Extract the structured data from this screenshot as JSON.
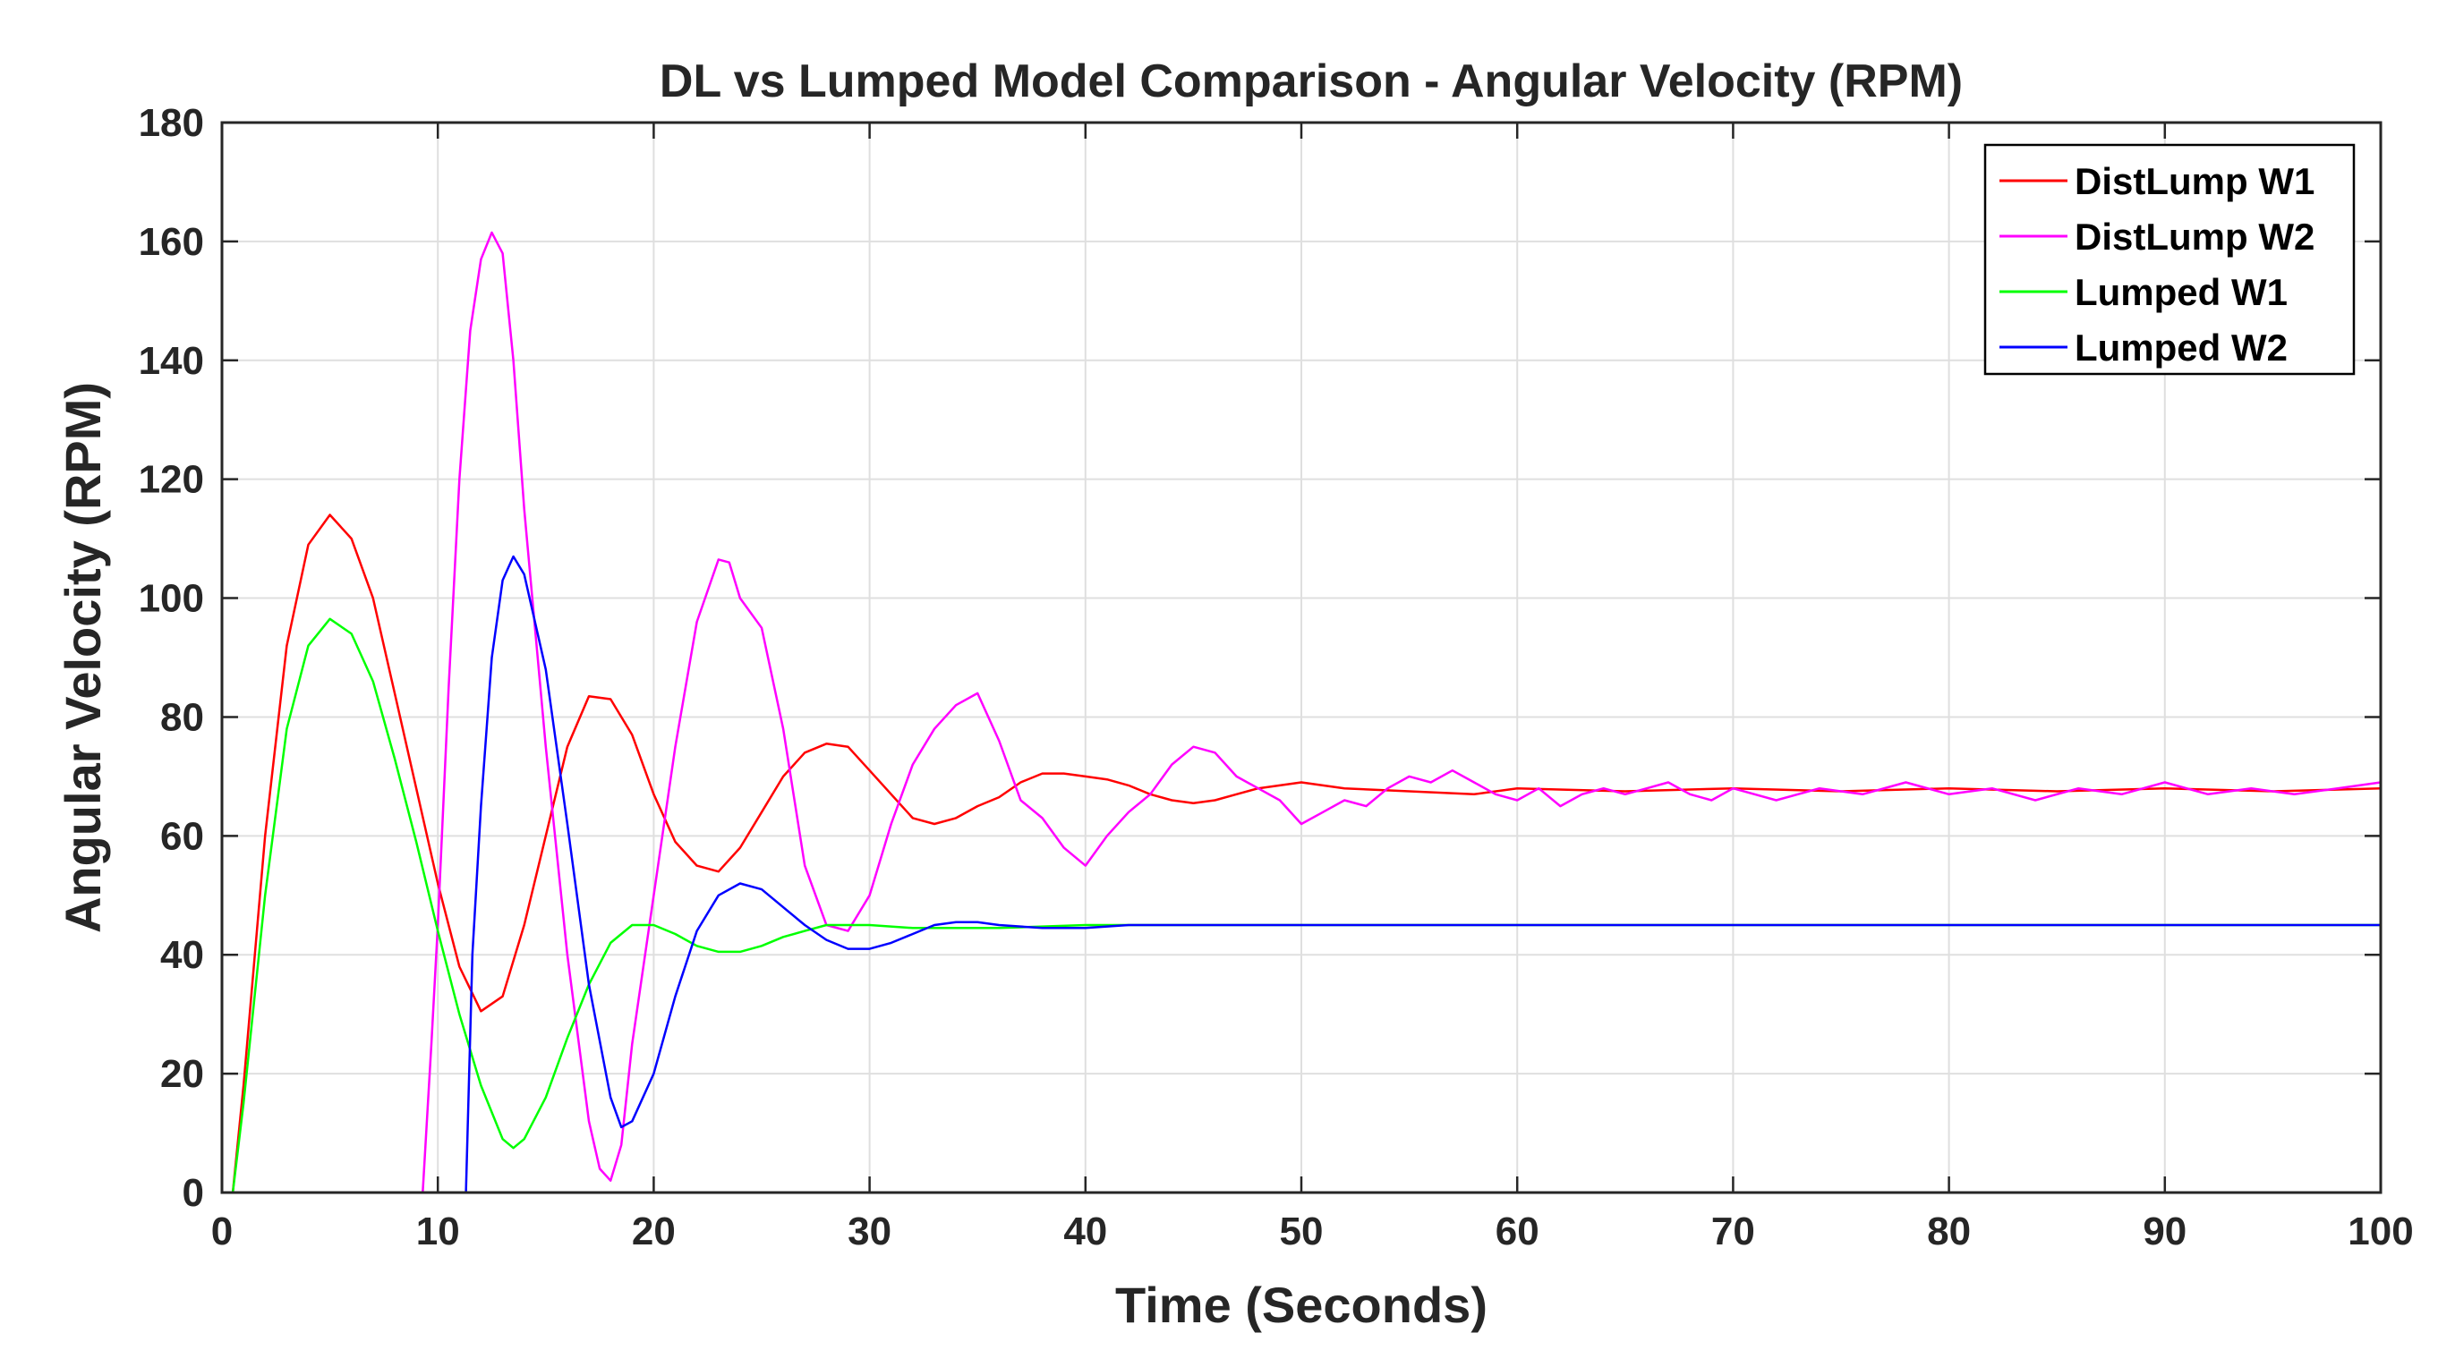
{
  "chart_data": {
    "type": "line",
    "title": "DL vs Lumped Model Comparison - Angular Velocity (RPM)",
    "xlabel": "Time (Seconds)",
    "ylabel": "Angular Velocity (RPM)",
    "xlim": [
      0,
      100
    ],
    "ylim": [
      0,
      180
    ],
    "xticks": [
      0,
      10,
      20,
      30,
      40,
      50,
      60,
      70,
      80,
      90,
      100
    ],
    "yticks": [
      0,
      20,
      40,
      60,
      80,
      100,
      120,
      140,
      160,
      180
    ],
    "grid": true,
    "legend_position": "top-right",
    "series": [
      {
        "name": "DistLump W1",
        "color": "#ff0000",
        "points": [
          [
            0.5,
            0
          ],
          [
            1,
            18
          ],
          [
            2,
            60
          ],
          [
            3,
            92
          ],
          [
            4,
            109
          ],
          [
            5,
            114
          ],
          [
            6,
            110
          ],
          [
            7,
            100
          ],
          [
            8,
            84
          ],
          [
            9,
            68
          ],
          [
            10,
            52
          ],
          [
            11,
            38
          ],
          [
            12,
            30.5
          ],
          [
            13,
            33
          ],
          [
            14,
            45
          ],
          [
            15,
            60
          ],
          [
            16,
            75
          ],
          [
            17,
            83.5
          ],
          [
            18,
            83
          ],
          [
            19,
            77
          ],
          [
            20,
            67
          ],
          [
            21,
            59
          ],
          [
            22,
            55
          ],
          [
            23,
            54
          ],
          [
            24,
            58
          ],
          [
            25,
            64
          ],
          [
            26,
            70
          ],
          [
            27,
            74
          ],
          [
            28,
            75.5
          ],
          [
            29,
            75
          ],
          [
            30,
            71
          ],
          [
            31,
            67
          ],
          [
            32,
            63
          ],
          [
            33,
            62
          ],
          [
            34,
            63
          ],
          [
            35,
            65
          ],
          [
            36,
            66.5
          ],
          [
            37,
            69
          ],
          [
            38,
            70.5
          ],
          [
            39,
            70.5
          ],
          [
            40,
            70
          ],
          [
            41,
            69.5
          ],
          [
            42,
            68.5
          ],
          [
            43,
            67
          ],
          [
            44,
            66
          ],
          [
            45,
            65.5
          ],
          [
            46,
            66
          ],
          [
            47,
            67
          ],
          [
            48,
            68
          ],
          [
            49,
            68.5
          ],
          [
            50,
            69
          ],
          [
            52,
            68
          ],
          [
            55,
            67.5
          ],
          [
            58,
            67
          ],
          [
            60,
            68
          ],
          [
            65,
            67.5
          ],
          [
            70,
            68
          ],
          [
            75,
            67.5
          ],
          [
            80,
            68
          ],
          [
            85,
            67.5
          ],
          [
            90,
            68
          ],
          [
            95,
            67.5
          ],
          [
            100,
            68
          ]
        ]
      },
      {
        "name": "DistLump W2",
        "color": "#ff00ff",
        "points": [
          [
            0,
            0
          ],
          [
            9,
            0
          ],
          [
            9.3,
            0
          ],
          [
            9.7,
            25
          ],
          [
            10,
            45
          ],
          [
            10.5,
            85
          ],
          [
            11,
            120
          ],
          [
            11.5,
            145
          ],
          [
            12,
            157
          ],
          [
            12.5,
            161.5
          ],
          [
            13,
            158
          ],
          [
            13.5,
            140
          ],
          [
            14,
            115
          ],
          [
            15,
            75
          ],
          [
            16,
            40
          ],
          [
            17,
            12
          ],
          [
            17.5,
            4
          ],
          [
            18,
            2
          ],
          [
            18.5,
            8
          ],
          [
            19,
            25
          ],
          [
            20,
            50
          ],
          [
            21,
            75
          ],
          [
            22,
            96
          ],
          [
            23,
            106.5
          ],
          [
            23.5,
            106
          ],
          [
            24,
            100
          ],
          [
            25,
            95
          ],
          [
            26,
            78
          ],
          [
            27,
            55
          ],
          [
            28,
            45
          ],
          [
            29,
            44
          ],
          [
            30,
            50
          ],
          [
            31,
            62
          ],
          [
            32,
            72
          ],
          [
            33,
            78
          ],
          [
            34,
            82
          ],
          [
            35,
            84
          ],
          [
            36,
            76
          ],
          [
            37,
            66
          ],
          [
            38,
            63
          ],
          [
            39,
            58
          ],
          [
            40,
            55
          ],
          [
            41,
            60
          ],
          [
            42,
            64
          ],
          [
            43,
            67
          ],
          [
            44,
            72
          ],
          [
            45,
            75
          ],
          [
            46,
            74
          ],
          [
            47,
            70
          ],
          [
            48,
            68
          ],
          [
            49,
            66
          ],
          [
            50,
            62
          ],
          [
            51,
            64
          ],
          [
            52,
            66
          ],
          [
            53,
            65
          ],
          [
            54,
            68
          ],
          [
            55,
            70
          ],
          [
            56,
            69
          ],
          [
            57,
            71
          ],
          [
            58,
            69
          ],
          [
            59,
            67
          ],
          [
            60,
            66
          ],
          [
            61,
            68
          ],
          [
            62,
            65
          ],
          [
            63,
            67
          ],
          [
            64,
            68
          ],
          [
            65,
            67
          ],
          [
            66,
            68
          ],
          [
            67,
            69
          ],
          [
            68,
            67
          ],
          [
            69,
            66
          ],
          [
            70,
            68
          ],
          [
            72,
            66
          ],
          [
            74,
            68
          ],
          [
            76,
            67
          ],
          [
            78,
            69
          ],
          [
            80,
            67
          ],
          [
            82,
            68
          ],
          [
            84,
            66
          ],
          [
            86,
            68
          ],
          [
            88,
            67
          ],
          [
            90,
            69
          ],
          [
            92,
            67
          ],
          [
            94,
            68
          ],
          [
            96,
            67
          ],
          [
            98,
            68
          ],
          [
            100,
            69
          ]
        ]
      },
      {
        "name": "Lumped W1",
        "color": "#00ff00",
        "points": [
          [
            0.5,
            0
          ],
          [
            1,
            15
          ],
          [
            2,
            50
          ],
          [
            3,
            78
          ],
          [
            4,
            92
          ],
          [
            5,
            96.5
          ],
          [
            6,
            94
          ],
          [
            7,
            86
          ],
          [
            8,
            73
          ],
          [
            9,
            59
          ],
          [
            10,
            44
          ],
          [
            11,
            30
          ],
          [
            12,
            18
          ],
          [
            13,
            9
          ],
          [
            13.5,
            7.5
          ],
          [
            14,
            9
          ],
          [
            15,
            16
          ],
          [
            16,
            26
          ],
          [
            17,
            35
          ],
          [
            18,
            42
          ],
          [
            19,
            45
          ],
          [
            20,
            45
          ],
          [
            21,
            43.5
          ],
          [
            22,
            41.5
          ],
          [
            23,
            40.5
          ],
          [
            24,
            40.5
          ],
          [
            25,
            41.5
          ],
          [
            26,
            43
          ],
          [
            27,
            44
          ],
          [
            28,
            45
          ],
          [
            29,
            45
          ],
          [
            30,
            45
          ],
          [
            32,
            44.5
          ],
          [
            34,
            44.5
          ],
          [
            36,
            44.5
          ],
          [
            40,
            45
          ],
          [
            45,
            45
          ],
          [
            100,
            45
          ]
        ]
      },
      {
        "name": "Lumped W2",
        "color": "#0000ff",
        "points": [
          [
            0,
            0
          ],
          [
            11,
            0
          ],
          [
            11.3,
            0
          ],
          [
            11.6,
            40
          ],
          [
            12,
            65
          ],
          [
            12.5,
            90
          ],
          [
            13,
            103
          ],
          [
            13.5,
            107
          ],
          [
            14,
            104
          ],
          [
            15,
            88
          ],
          [
            16,
            62
          ],
          [
            17,
            35
          ],
          [
            18,
            16
          ],
          [
            18.5,
            11
          ],
          [
            19,
            12
          ],
          [
            20,
            20
          ],
          [
            21,
            33
          ],
          [
            22,
            44
          ],
          [
            23,
            50
          ],
          [
            24,
            52
          ],
          [
            25,
            51
          ],
          [
            26,
            48
          ],
          [
            27,
            45
          ],
          [
            28,
            42.5
          ],
          [
            29,
            41
          ],
          [
            30,
            41
          ],
          [
            31,
            42
          ],
          [
            32,
            43.5
          ],
          [
            33,
            45
          ],
          [
            34,
            45.5
          ],
          [
            35,
            45.5
          ],
          [
            36,
            45
          ],
          [
            38,
            44.5
          ],
          [
            40,
            44.5
          ],
          [
            42,
            45
          ],
          [
            45,
            45
          ],
          [
            100,
            45
          ]
        ]
      }
    ]
  }
}
